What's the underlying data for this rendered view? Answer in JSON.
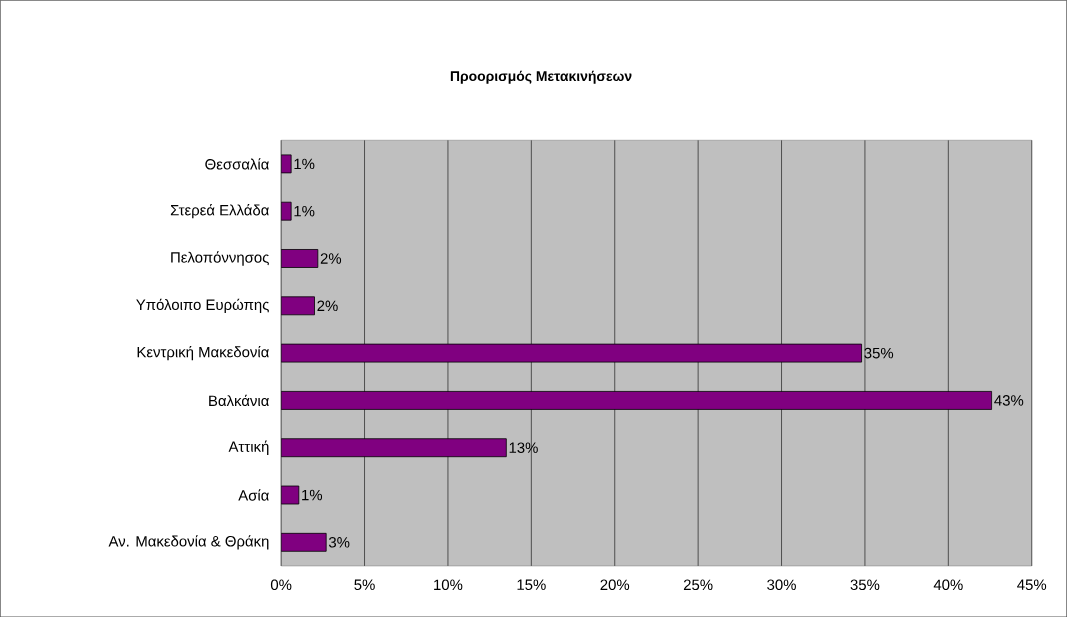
{
  "chart_data": {
    "type": "bar",
    "orientation": "horizontal",
    "title": "Προορισμός Μετακινήσεων",
    "categories": [
      "Θεσσαλία",
      "Στερεά Ελλάδα",
      "Πελοπόννησος",
      "Υπόλοιπο Ευρώπης",
      "Κεντρική Μακεδονία",
      "Βαλκάνια",
      "Αττική",
      "Ασία",
      "Αν. Μακεδονία & Θράκη"
    ],
    "values": [
      0.6,
      0.6,
      2.2,
      2.0,
      34.8,
      42.6,
      13.5,
      1.06,
      2.7
    ],
    "value_labels": [
      "1%",
      "1%",
      "2%",
      "2%",
      "35%",
      "43%",
      "13%",
      "1%",
      "3%"
    ],
    "color": "#800080",
    "xlim": [
      0,
      45
    ],
    "xticks": [
      {
        "value": 0,
        "label": "0%"
      },
      {
        "value": 5,
        "label": "5%"
      },
      {
        "value": 10,
        "label": "10%"
      },
      {
        "value": 15,
        "label": "15%"
      },
      {
        "value": 20,
        "label": "20%"
      },
      {
        "value": 25,
        "label": "25%"
      },
      {
        "value": 30,
        "label": "30%"
      },
      {
        "value": 35,
        "label": "35%"
      },
      {
        "value": 40,
        "label": "40%"
      },
      {
        "value": 45,
        "label": "45%"
      }
    ],
    "grid": "x"
  }
}
